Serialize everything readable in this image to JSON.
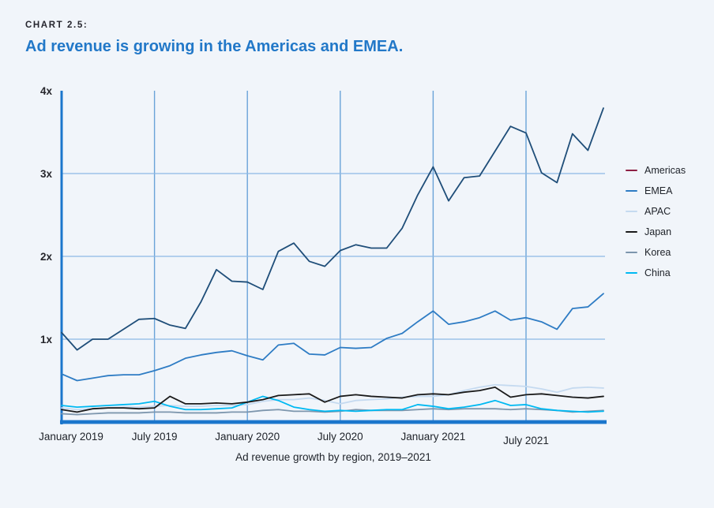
{
  "page": {
    "background": "#f1f5fa"
  },
  "header": {
    "kicker": "CHART 2.5:",
    "title": "Ad revenue is growing in the Americas and EMEA.",
    "title_color": "#2278c8"
  },
  "chart_data": {
    "type": "line",
    "title": "Ad revenue is growing in the Americas and EMEA.",
    "caption": "Ad revenue growth by region, 2019–2021",
    "ylim": [
      0,
      4
    ],
    "grid": {
      "vertical_color": "#6aa3d8",
      "horizontal_color": "#8db9e5",
      "grid_on": true
    },
    "axis_color": "#1b76cc",
    "legend_position": "right",
    "x_interval": "monthly",
    "months": [
      "Jan 2019",
      "Feb 2019",
      "Mar 2019",
      "Apr 2019",
      "May 2019",
      "Jun 2019",
      "Jul 2019",
      "Aug 2019",
      "Sep 2019",
      "Oct 2019",
      "Nov 2019",
      "Dec 2019",
      "Jan 2020",
      "Feb 2020",
      "Mar 2020",
      "Apr 2020",
      "May 2020",
      "Jun 2020",
      "Jul 2020",
      "Aug 2020",
      "Sep 2020",
      "Oct 2020",
      "Nov 2020",
      "Dec 2020",
      "Jan 2021",
      "Feb 2021",
      "Mar 2021",
      "Apr 2021",
      "May 2021",
      "Jun 2021",
      "Jul 2021",
      "Aug 2021",
      "Sep 2021",
      "Oct 2021",
      "Nov 2021",
      "Dec 2021"
    ],
    "x_ticks": [
      {
        "index": 0,
        "label": "January 2019"
      },
      {
        "index": 6,
        "label": "July 2019"
      },
      {
        "index": 12,
        "label": "January 2020"
      },
      {
        "index": 18,
        "label": "July 2020"
      },
      {
        "index": 24,
        "label": "January 2021"
      },
      {
        "index": 30,
        "label": "July 2021"
      }
    ],
    "y_ticks": [
      {
        "value": 1,
        "label": "1x"
      },
      {
        "value": 2,
        "label": "2x"
      },
      {
        "value": 3,
        "label": "3x"
      },
      {
        "value": 4,
        "label": "4x"
      }
    ],
    "series": [
      {
        "name": "Americas",
        "swatch_color": "#8e2044",
        "line_color": "#1f4e79",
        "values": [
          1.08,
          0.87,
          1.0,
          1.0,
          1.12,
          1.24,
          1.25,
          1.17,
          1.13,
          1.45,
          1.84,
          1.7,
          1.69,
          1.6,
          2.06,
          2.16,
          1.94,
          1.88,
          2.07,
          2.14,
          2.1,
          2.1,
          2.34,
          2.74,
          3.08,
          2.67,
          2.95,
          2.97,
          3.27,
          3.57,
          3.49,
          3.01,
          2.89,
          3.48,
          3.28,
          3.79
        ]
      },
      {
        "name": "EMEA",
        "swatch_color": "#2e7cc4",
        "line_color": "#2e7cc4",
        "values": [
          0.58,
          0.5,
          0.53,
          0.56,
          0.57,
          0.57,
          0.62,
          0.68,
          0.77,
          0.81,
          0.84,
          0.86,
          0.8,
          0.75,
          0.93,
          0.95,
          0.82,
          0.81,
          0.9,
          0.89,
          0.9,
          1.01,
          1.07,
          1.21,
          1.34,
          1.18,
          1.21,
          1.26,
          1.34,
          1.23,
          1.26,
          1.21,
          1.12,
          1.37,
          1.39,
          1.55
        ]
      },
      {
        "name": "APAC",
        "swatch_color": "#c5daf0",
        "line_color": "#c5daf0",
        "values": [
          0.17,
          0.15,
          0.16,
          0.17,
          0.18,
          0.18,
          0.19,
          0.2,
          0.19,
          0.19,
          0.2,
          0.2,
          0.21,
          0.25,
          0.27,
          0.27,
          0.29,
          0.26,
          0.22,
          0.26,
          0.27,
          0.28,
          0.3,
          0.31,
          0.31,
          0.33,
          0.38,
          0.42,
          0.45,
          0.44,
          0.43,
          0.4,
          0.36,
          0.41,
          0.42,
          0.41
        ]
      },
      {
        "name": "Japan",
        "swatch_color": "#1a1a1a",
        "line_color": "#1a1a1a",
        "values": [
          0.15,
          0.12,
          0.16,
          0.17,
          0.17,
          0.16,
          0.17,
          0.31,
          0.22,
          0.22,
          0.23,
          0.22,
          0.24,
          0.27,
          0.32,
          0.33,
          0.34,
          0.24,
          0.31,
          0.33,
          0.31,
          0.3,
          0.29,
          0.33,
          0.34,
          0.33,
          0.36,
          0.38,
          0.42,
          0.3,
          0.33,
          0.34,
          0.32,
          0.3,
          0.29,
          0.31
        ]
      },
      {
        "name": "Korea",
        "swatch_color": "#7d96ad",
        "line_color": "#7d96ad",
        "values": [
          0.1,
          0.09,
          0.1,
          0.11,
          0.11,
          0.11,
          0.12,
          0.12,
          0.11,
          0.11,
          0.11,
          0.12,
          0.12,
          0.14,
          0.15,
          0.13,
          0.13,
          0.12,
          0.13,
          0.15,
          0.14,
          0.14,
          0.14,
          0.15,
          0.16,
          0.15,
          0.16,
          0.16,
          0.16,
          0.15,
          0.16,
          0.15,
          0.14,
          0.12,
          0.13,
          0.14
        ]
      },
      {
        "name": "China",
        "swatch_color": "#00b9f2",
        "line_color": "#00b9f2",
        "values": [
          0.2,
          0.18,
          0.19,
          0.2,
          0.21,
          0.22,
          0.25,
          0.19,
          0.15,
          0.15,
          0.16,
          0.17,
          0.24,
          0.31,
          0.26,
          0.18,
          0.15,
          0.13,
          0.14,
          0.13,
          0.14,
          0.15,
          0.15,
          0.21,
          0.19,
          0.16,
          0.18,
          0.21,
          0.26,
          0.2,
          0.21,
          0.16,
          0.14,
          0.13,
          0.12,
          0.13
        ]
      }
    ]
  }
}
